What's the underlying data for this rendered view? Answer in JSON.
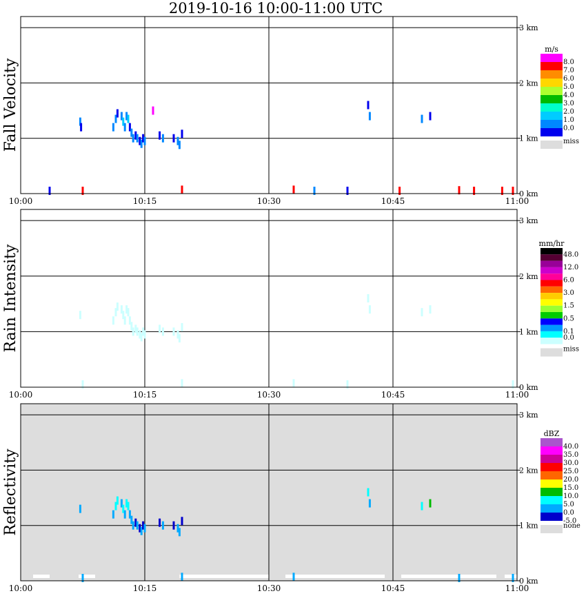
{
  "title": "2019-10-16   10:00-11:00 UTC",
  "chart_data": [
    {
      "type": "heatmap",
      "ylabel": "Fall Velocity",
      "x_ticks": [
        "10:00",
        "10:15",
        "10:30",
        "10:45",
        "11:00"
      ],
      "y_ticks": [
        "3 km",
        "2 km",
        "1 km",
        "0 km"
      ],
      "xlim_minutes": [
        0,
        60
      ],
      "ylim_km": [
        0,
        3.2
      ],
      "grid": true,
      "background": "#ffffff",
      "legend": {
        "unit": "m/s",
        "labels": [
          "8.0",
          "7.0",
          "6.0",
          "5.0",
          "4.0",
          "3.0",
          "2.0",
          "1.0",
          "0.0"
        ],
        "colors": [
          "#ff00ff",
          "#ff0000",
          "#ff8c00",
          "#ffd700",
          "#adff2f",
          "#00bb00",
          "#00ffcc",
          "#00ccff",
          "#0088ff",
          "#0000ee"
        ],
        "miss_label": "miss",
        "miss_color": "#dddddd"
      },
      "cells": [
        [
          7.2,
          1.3,
          1
        ],
        [
          7.3,
          1.2,
          0
        ],
        [
          11.2,
          1.2,
          1
        ],
        [
          11.5,
          1.35,
          1
        ],
        [
          11.7,
          1.45,
          0
        ],
        [
          12.2,
          1.4,
          1
        ],
        [
          12.4,
          1.3,
          2
        ],
        [
          12.6,
          1.2,
          1
        ],
        [
          12.8,
          1.4,
          1
        ],
        [
          13.0,
          1.35,
          2
        ],
        [
          13.2,
          1.2,
          0
        ],
        [
          13.4,
          1.1,
          1
        ],
        [
          13.6,
          1.0,
          1
        ],
        [
          13.9,
          1.05,
          0
        ],
        [
          14.1,
          1.0,
          1
        ],
        [
          14.4,
          0.95,
          0
        ],
        [
          14.6,
          0.9,
          1
        ],
        [
          14.8,
          1.0,
          0
        ],
        [
          15.0,
          0.95,
          1
        ],
        [
          16.0,
          1.5,
          9
        ],
        [
          16.8,
          1.05,
          0
        ],
        [
          17.2,
          1.0,
          1
        ],
        [
          18.5,
          1.0,
          0
        ],
        [
          19.0,
          0.95,
          1
        ],
        [
          19.2,
          0.88,
          1
        ],
        [
          19.5,
          1.08,
          0
        ],
        [
          42.0,
          1.6,
          0
        ],
        [
          42.2,
          1.4,
          1
        ],
        [
          48.5,
          1.35,
          1
        ],
        [
          49.5,
          1.4,
          0
        ],
        [
          3.5,
          0.05,
          0
        ],
        [
          7.5,
          0.05,
          8
        ],
        [
          19.5,
          0.07,
          8
        ],
        [
          33,
          0.07,
          8
        ],
        [
          35.5,
          0.05,
          1
        ],
        [
          39.5,
          0.05,
          0
        ],
        [
          45.8,
          0.05,
          8
        ],
        [
          53,
          0.06,
          8
        ],
        [
          54.8,
          0.05,
          8
        ],
        [
          58.2,
          0.05,
          8
        ],
        [
          59.5,
          0.05,
          8
        ]
      ]
    },
    {
      "type": "heatmap",
      "ylabel": "Rain Intensity",
      "x_ticks": [
        "10:00",
        "10:15",
        "10:30",
        "10:45",
        "11:00"
      ],
      "y_ticks": [
        "3 km",
        "2 km",
        "1 km",
        "0 km"
      ],
      "xlim_minutes": [
        0,
        60
      ],
      "ylim_km": [
        0,
        3.2
      ],
      "grid": true,
      "background": "#ffffff",
      "legend": {
        "unit": "mm/hr",
        "labels": [
          "48.0",
          "",
          "12.0",
          "",
          "6.0",
          "",
          "3.0",
          "",
          "1.5",
          "",
          "0.5",
          "",
          "0.1",
          "0.0"
        ],
        "colors": [
          "#000000",
          "#550033",
          "#990099",
          "#cc00cc",
          "#ff0099",
          "#ff0000",
          "#ff6600",
          "#ffcc00",
          "#ffff00",
          "#99ff33",
          "#00cc00",
          "#0000ff",
          "#0099ff",
          "#00ffff",
          "#ccffff"
        ],
        "miss_label": "miss",
        "miss_color": "#dddddd"
      },
      "cells": [
        [
          7.2,
          1.3,
          0
        ],
        [
          11.2,
          1.2,
          0
        ],
        [
          11.5,
          1.35,
          0
        ],
        [
          11.7,
          1.45,
          0
        ],
        [
          12.2,
          1.4,
          0
        ],
        [
          12.4,
          1.3,
          0
        ],
        [
          12.6,
          1.2,
          0
        ],
        [
          12.8,
          1.4,
          0
        ],
        [
          13.0,
          1.35,
          0
        ],
        [
          13.2,
          1.2,
          0
        ],
        [
          13.4,
          1.1,
          0
        ],
        [
          13.6,
          1.0,
          0
        ],
        [
          13.9,
          1.05,
          0
        ],
        [
          14.1,
          1.0,
          0
        ],
        [
          14.4,
          0.95,
          0
        ],
        [
          14.6,
          0.9,
          0
        ],
        [
          14.8,
          1.0,
          0
        ],
        [
          15.0,
          0.95,
          0
        ],
        [
          16.8,
          1.05,
          0
        ],
        [
          17.2,
          1.0,
          0
        ],
        [
          18.5,
          1.0,
          0
        ],
        [
          19.0,
          0.95,
          0
        ],
        [
          19.2,
          0.88,
          0
        ],
        [
          19.5,
          1.08,
          0
        ],
        [
          42.0,
          1.6,
          0
        ],
        [
          42.2,
          1.4,
          0
        ],
        [
          48.5,
          1.35,
          0
        ],
        [
          49.5,
          1.4,
          0
        ],
        [
          7.5,
          0.05,
          0
        ],
        [
          19.5,
          0.07,
          0
        ],
        [
          33,
          0.07,
          0
        ],
        [
          39.5,
          0.05,
          0
        ],
        [
          59.5,
          0.05,
          0
        ]
      ]
    },
    {
      "type": "heatmap",
      "ylabel": "Reflectivity",
      "x_ticks": [
        "10:00",
        "10:15",
        "10:30",
        "10:45",
        "11:00"
      ],
      "y_ticks": [
        "3 km",
        "2 km",
        "1 km",
        "0 km"
      ],
      "xlim_minutes": [
        0,
        60
      ],
      "ylim_km": [
        0,
        3.2
      ],
      "grid": true,
      "background": "#dddddd",
      "legend": {
        "unit": "dBZ",
        "labels": [
          "40.0",
          "35.0",
          "30.0",
          "25.0",
          "20.0",
          "15.0",
          "10.0",
          "5.0",
          "0.0",
          "-5.0"
        ],
        "colors": [
          "#aa55cc",
          "#ff00ff",
          "#cc0099",
          "#ff0000",
          "#ff6600",
          "#ffff00",
          "#00bb00",
          "#00ffff",
          "#00aaff",
          "#0000cc"
        ],
        "miss_label": "none",
        "miss_color": "#dddddd"
      },
      "cells": [
        [
          7.2,
          1.3,
          1
        ],
        [
          11.2,
          1.2,
          1
        ],
        [
          11.5,
          1.35,
          2
        ],
        [
          11.7,
          1.45,
          2
        ],
        [
          12.2,
          1.4,
          1
        ],
        [
          12.4,
          1.3,
          2
        ],
        [
          12.6,
          1.2,
          1
        ],
        [
          12.8,
          1.4,
          2
        ],
        [
          13.0,
          1.35,
          2
        ],
        [
          13.2,
          1.2,
          1
        ],
        [
          13.4,
          1.1,
          1
        ],
        [
          13.6,
          1.0,
          1
        ],
        [
          13.9,
          1.05,
          0
        ],
        [
          14.1,
          1.0,
          1
        ],
        [
          14.4,
          0.95,
          0
        ],
        [
          14.6,
          0.9,
          1
        ],
        [
          14.8,
          1.0,
          0
        ],
        [
          15.0,
          0.95,
          1
        ],
        [
          16.8,
          1.05,
          0
        ],
        [
          17.2,
          1.0,
          1
        ],
        [
          18.5,
          1.0,
          0
        ],
        [
          19.0,
          0.95,
          1
        ],
        [
          19.2,
          0.88,
          1
        ],
        [
          19.5,
          1.08,
          0
        ],
        [
          42.0,
          1.6,
          2
        ],
        [
          42.2,
          1.4,
          1
        ],
        [
          48.5,
          1.35,
          2
        ],
        [
          49.5,
          1.4,
          3
        ],
        [
          7.5,
          0.05,
          1
        ],
        [
          19.5,
          0.07,
          1
        ],
        [
          33,
          0.07,
          1
        ],
        [
          53,
          0.05,
          1
        ],
        [
          59.5,
          0.05,
          1
        ]
      ],
      "none_cells": [
        [
          1.5,
          3.5
        ],
        [
          7,
          9
        ],
        [
          19.2,
          30
        ],
        [
          32,
          44
        ],
        [
          46,
          57.5
        ],
        [
          58.5,
          60
        ]
      ]
    }
  ]
}
